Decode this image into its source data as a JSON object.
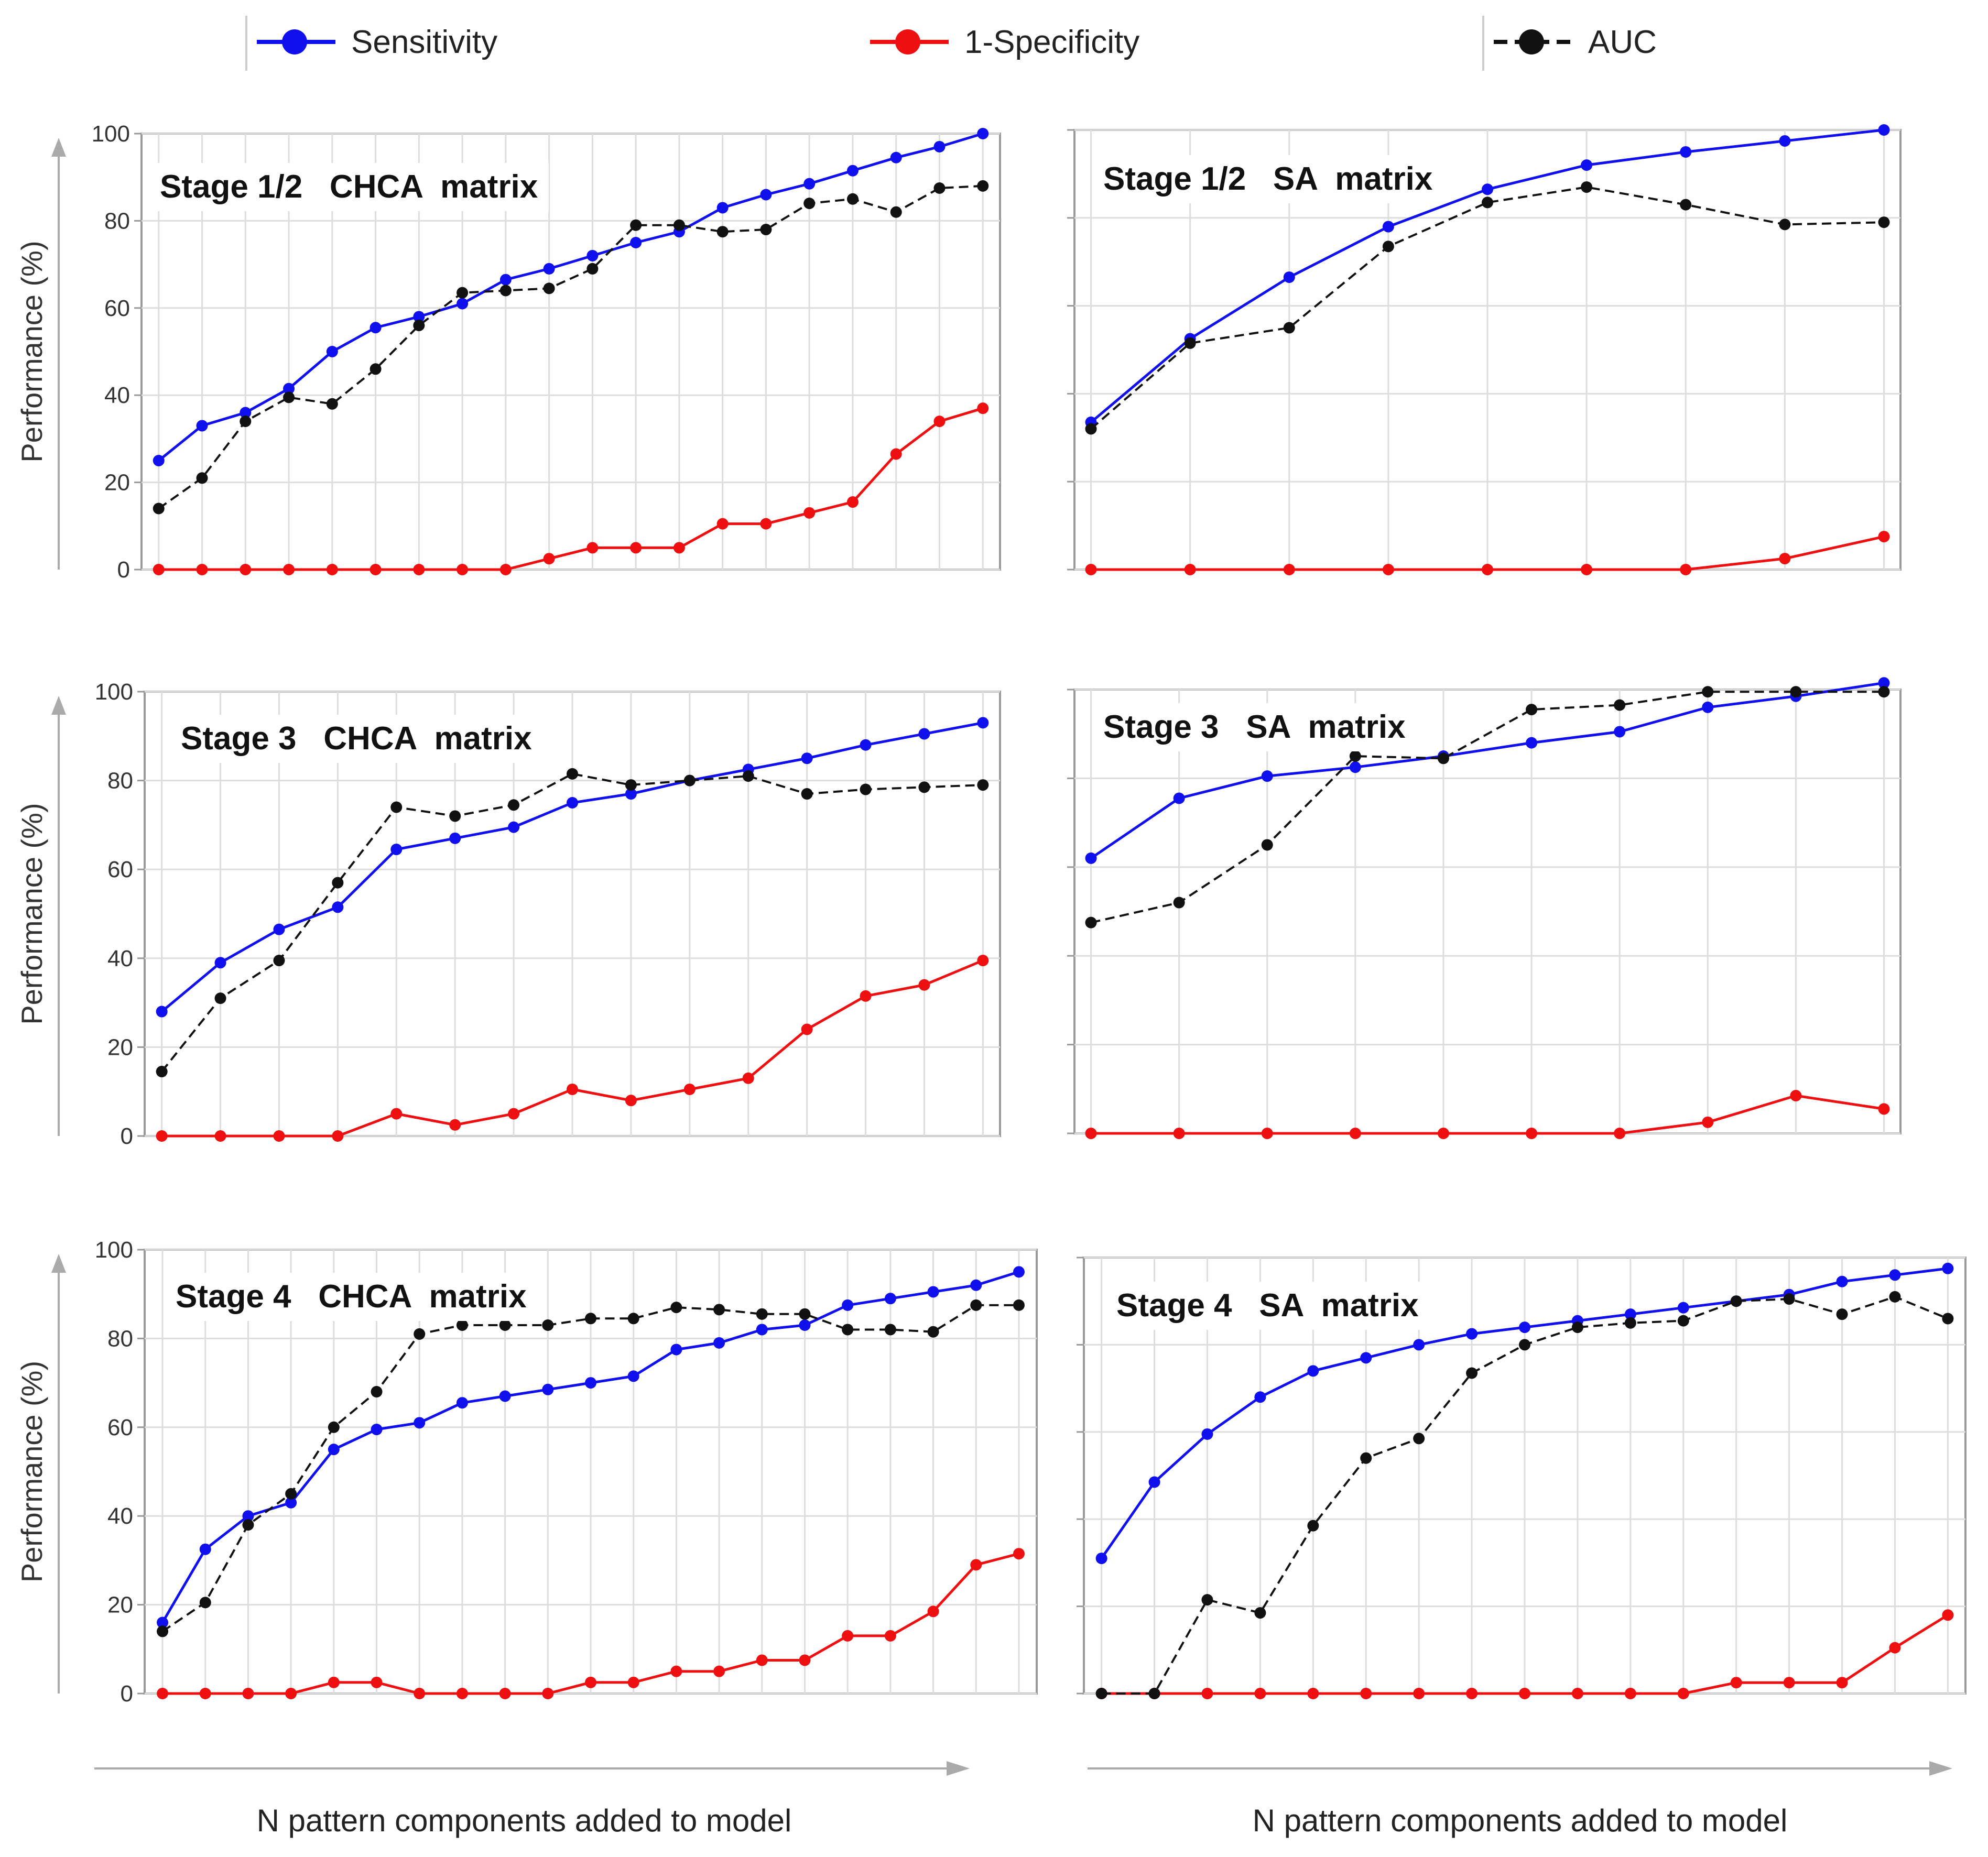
{
  "legend": [
    {
      "name": "Sensitivity",
      "color": "#1010ee",
      "dashed": false
    },
    {
      "name": "1-Specificity",
      "color": "#ee1010",
      "dashed": false
    },
    {
      "name": "AUC",
      "color": "#111111",
      "dashed": true
    }
  ],
  "xlabel": "N pattern components added to model",
  "ylabel": "Performance  (%)",
  "colors": {
    "sensitivity": "#1010ee",
    "specificity": "#ee1010",
    "auc": "#111111",
    "grid": "#dddddd",
    "frame": "#999999",
    "arrow": "#aaaaaa"
  },
  "chart_data": [
    {
      "type": "line",
      "title": "Stage 1/2   CHCA  matrix",
      "ylim": [
        0,
        100
      ],
      "yticks": [
        "0",
        "20",
        "40",
        "60",
        "80",
        "100"
      ],
      "show_ytick_labels": true,
      "x": [
        1,
        2,
        3,
        4,
        5,
        6,
        7,
        8,
        9,
        10,
        11,
        12,
        13,
        14,
        15,
        16,
        17,
        18,
        19,
        20
      ],
      "series": [
        {
          "name": "Sensitivity",
          "values": [
            25,
            33,
            36,
            41.5,
            50,
            55.5,
            58,
            61,
            66.5,
            69,
            72,
            75,
            77.5,
            83,
            86,
            88.5,
            91.5,
            94.5,
            97,
            100
          ]
        },
        {
          "name": "1-Specificity",
          "values": [
            0,
            0,
            0,
            0,
            0,
            0,
            0,
            0,
            0,
            2.5,
            5,
            5,
            5,
            10.5,
            10.5,
            13,
            15.5,
            26.5,
            34,
            37
          ]
        },
        {
          "name": "AUC",
          "values": [
            14,
            21,
            34,
            39.5,
            38,
            46,
            56,
            63.5,
            64,
            64.5,
            69,
            79,
            79,
            77.5,
            78,
            84,
            85,
            82,
            87.5,
            88
          ]
        }
      ]
    },
    {
      "type": "line",
      "title": "Stage 1/2   SA  matrix",
      "ylim": [
        0,
        100
      ],
      "yticks": [
        "0",
        "20",
        "40",
        "60",
        "80",
        "100"
      ],
      "show_ytick_labels": false,
      "x": [
        1,
        2,
        3,
        4,
        5,
        6,
        7,
        8,
        9
      ],
      "series": [
        {
          "name": "Sensitivity",
          "values": [
            33.5,
            52.5,
            66.5,
            78,
            86.5,
            92,
            95,
            97.5,
            100
          ]
        },
        {
          "name": "1-Specificity",
          "values": [
            0,
            0,
            0,
            0,
            0,
            0,
            0,
            2.5,
            7.5
          ]
        },
        {
          "name": "AUC",
          "values": [
            32,
            51.5,
            55,
            73.5,
            83.5,
            87,
            83,
            78.5,
            79
          ]
        }
      ]
    },
    {
      "type": "line",
      "title": "Stage 3   CHCA  matrix",
      "ylim": [
        0,
        100
      ],
      "yticks": [
        "0",
        "20",
        "40",
        "60",
        "80",
        "100"
      ],
      "show_ytick_labels": true,
      "x": [
        1,
        2,
        3,
        4,
        5,
        6,
        7,
        8,
        9,
        10,
        11,
        12,
        13,
        14,
        15
      ],
      "series": [
        {
          "name": "Sensitivity",
          "values": [
            28,
            39,
            46.5,
            51.5,
            64.5,
            67,
            69.5,
            75,
            77,
            80,
            82.5,
            85,
            88,
            90.5,
            93
          ]
        },
        {
          "name": "1-Specificity",
          "values": [
            0,
            0,
            0,
            0,
            5,
            2.5,
            5,
            10.5,
            8,
            10.5,
            13,
            24,
            31.5,
            34,
            39.5
          ]
        },
        {
          "name": "AUC",
          "values": [
            14.5,
            31,
            39.5,
            57,
            74,
            72,
            74.5,
            81.5,
            79,
            80,
            81,
            77,
            78,
            78.5,
            79
          ]
        }
      ]
    },
    {
      "type": "line",
      "title": "Stage 3   SA  matrix",
      "ylim": [
        0,
        100
      ],
      "yticks": [
        "0",
        "20",
        "40",
        "60",
        "80",
        "100"
      ],
      "show_ytick_labels": false,
      "x": [
        1,
        2,
        3,
        4,
        5,
        6,
        7,
        8,
        9,
        10
      ],
      "series": [
        {
          "name": "Sensitivity",
          "values": [
            62,
            75.5,
            80.5,
            82.5,
            85,
            88,
            90.5,
            96,
            98.5,
            101.5
          ]
        },
        {
          "name": "1-Specificity",
          "values": [
            0,
            0,
            0,
            0,
            0,
            0,
            0,
            2.5,
            8.5,
            5.5
          ]
        },
        {
          "name": "AUC",
          "values": [
            47.5,
            52,
            65,
            85,
            84.5,
            95.5,
            96.5,
            99.5,
            99.5,
            99.5
          ]
        }
      ]
    },
    {
      "type": "line",
      "title": "Stage 4   CHCA  matrix",
      "ylim": [
        0,
        100
      ],
      "yticks": [
        "0",
        "20",
        "40",
        "60",
        "80",
        "100"
      ],
      "show_ytick_labels": true,
      "x": [
        1,
        2,
        3,
        4,
        5,
        6,
        7,
        8,
        9,
        10,
        11,
        12,
        13,
        14,
        15,
        16,
        17,
        18,
        19,
        20,
        21
      ],
      "series": [
        {
          "name": "Sensitivity",
          "values": [
            16,
            32.5,
            40,
            43,
            55,
            59.5,
            61,
            65.5,
            67,
            68.5,
            70,
            71.5,
            77.5,
            79,
            82,
            83,
            87.5,
            89,
            90.5,
            92,
            95
          ]
        },
        {
          "name": "1-Specificity",
          "values": [
            0,
            0,
            0,
            0,
            2.5,
            2.5,
            0,
            0,
            0,
            0,
            2.5,
            2.5,
            5,
            5,
            7.5,
            7.5,
            13,
            13,
            18.5,
            29,
            31.5
          ]
        },
        {
          "name": "AUC",
          "values": [
            14,
            20.5,
            38,
            45,
            60,
            68,
            81,
            83,
            83,
            83,
            84.5,
            84.5,
            87,
            86.5,
            85.5,
            85.5,
            82,
            82,
            81.5,
            87.5,
            87.5
          ]
        }
      ]
    },
    {
      "type": "line",
      "title": "Stage 4   SA  matrix",
      "ylim": [
        0,
        100
      ],
      "yticks": [
        "0",
        "20",
        "40",
        "60",
        "80",
        "100"
      ],
      "show_ytick_labels": false,
      "x": [
        1,
        2,
        3,
        4,
        5,
        6,
        7,
        8,
        9,
        10,
        11,
        12,
        13,
        14,
        15,
        16,
        17
      ],
      "series": [
        {
          "name": "Sensitivity",
          "values": [
            31,
            48.5,
            59.5,
            68,
            74,
            77,
            80,
            82.5,
            84,
            85.5,
            87,
            88.5,
            90,
            91.5,
            94.5,
            96,
            97.5
          ]
        },
        {
          "name": "1-Specificity",
          "values": [
            0,
            0,
            0,
            0,
            0,
            0,
            0,
            0,
            0,
            0,
            0,
            0,
            2.5,
            2.5,
            2.5,
            10.5,
            18
          ]
        },
        {
          "name": "AUC",
          "values": [
            0,
            0,
            21.5,
            18.5,
            38.5,
            54,
            58.5,
            73.5,
            80,
            84,
            85,
            85.5,
            90,
            90.5,
            87,
            91,
            86
          ]
        }
      ]
    }
  ]
}
